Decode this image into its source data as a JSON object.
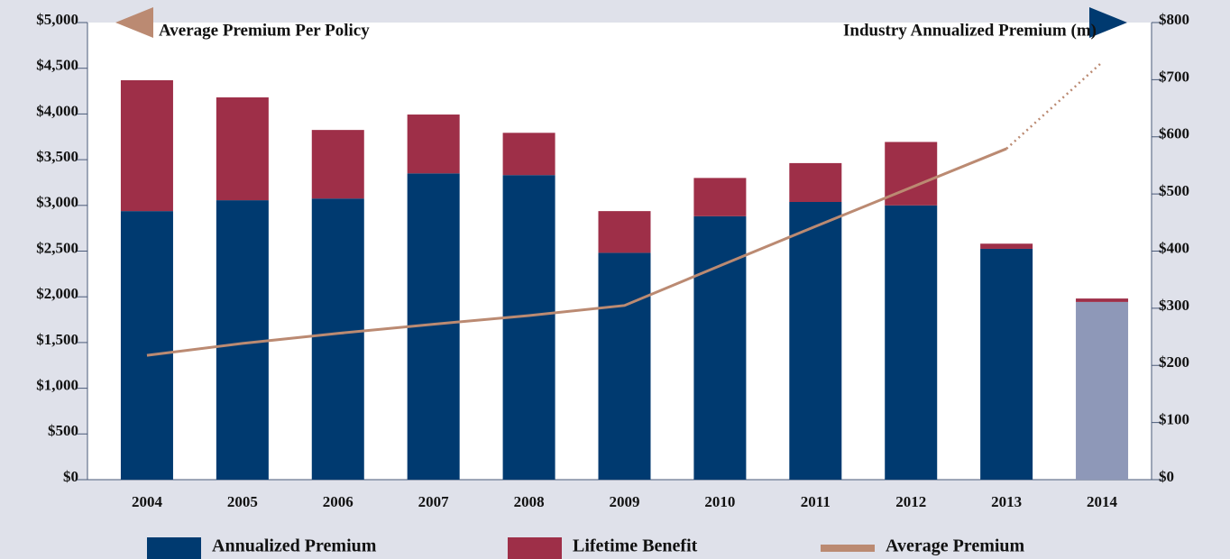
{
  "chart_data": {
    "type": "stacked-bar-line",
    "ylabel": "Average Premium Per Policy",
    "y2label": "Industry Annualized Premium (m)",
    "categories": [
      "2004",
      "2005",
      "2006",
      "2007",
      "2008",
      "2009",
      "2010",
      "2011",
      "2012",
      "2013",
      "2014"
    ],
    "series": [
      {
        "name": "Annualized Premium",
        "kind": "bar",
        "axis": "y2",
        "color": "#003a70",
        "colors": [
          "#003a70",
          "#003a70",
          "#003a70",
          "#003a70",
          "#003a70",
          "#003a70",
          "#003a70",
          "#003a70",
          "#003a70",
          "#003a70",
          "#8e98b8"
        ],
        "values": [
          470,
          489,
          492,
          536,
          533,
          397,
          461,
          486,
          480,
          404,
          311
        ]
      },
      {
        "name": "Lifetime Benefit",
        "kind": "bar",
        "axis": "y2",
        "color": "#9e2f48",
        "values": [
          229,
          180,
          120,
          103,
          74,
          73,
          67,
          68,
          111,
          9,
          6
        ]
      },
      {
        "name": "Average Premium",
        "kind": "line",
        "axis": "y",
        "color": "#bb8a72",
        "dotted_last_segment": true,
        "values": [
          1360,
          1490,
          1600,
          1700,
          1795,
          1905,
          2340,
          2770,
          3195,
          3620,
          4565
        ]
      }
    ],
    "ylim": [
      0,
      5000
    ],
    "yticks": [
      {
        "value": 0,
        "label": "$0"
      },
      {
        "value": 500,
        "label": "$500"
      },
      {
        "value": 1000,
        "label": "$1,000"
      },
      {
        "value": 1500,
        "label": "$1,500"
      },
      {
        "value": 2000,
        "label": "$2,000"
      },
      {
        "value": 2500,
        "label": "$2,500"
      },
      {
        "value": 3000,
        "label": "$3,000"
      },
      {
        "value": 3500,
        "label": "$3,500"
      },
      {
        "value": 4000,
        "label": "$4,000"
      },
      {
        "value": 4500,
        "label": "$4,500"
      },
      {
        "value": 5000,
        "label": "$5,000"
      }
    ],
    "y2lim": [
      0,
      800
    ],
    "y2ticks": [
      {
        "value": 0,
        "label": "$0"
      },
      {
        "value": 100,
        "label": "$100"
      },
      {
        "value": 200,
        "label": "$200"
      },
      {
        "value": 300,
        "label": "$300"
      },
      {
        "value": 400,
        "label": "$400"
      },
      {
        "value": 500,
        "label": "$500"
      },
      {
        "value": 600,
        "label": "$600"
      },
      {
        "value": 700,
        "label": "$700"
      },
      {
        "value": 800,
        "label": "$800"
      }
    ]
  }
}
